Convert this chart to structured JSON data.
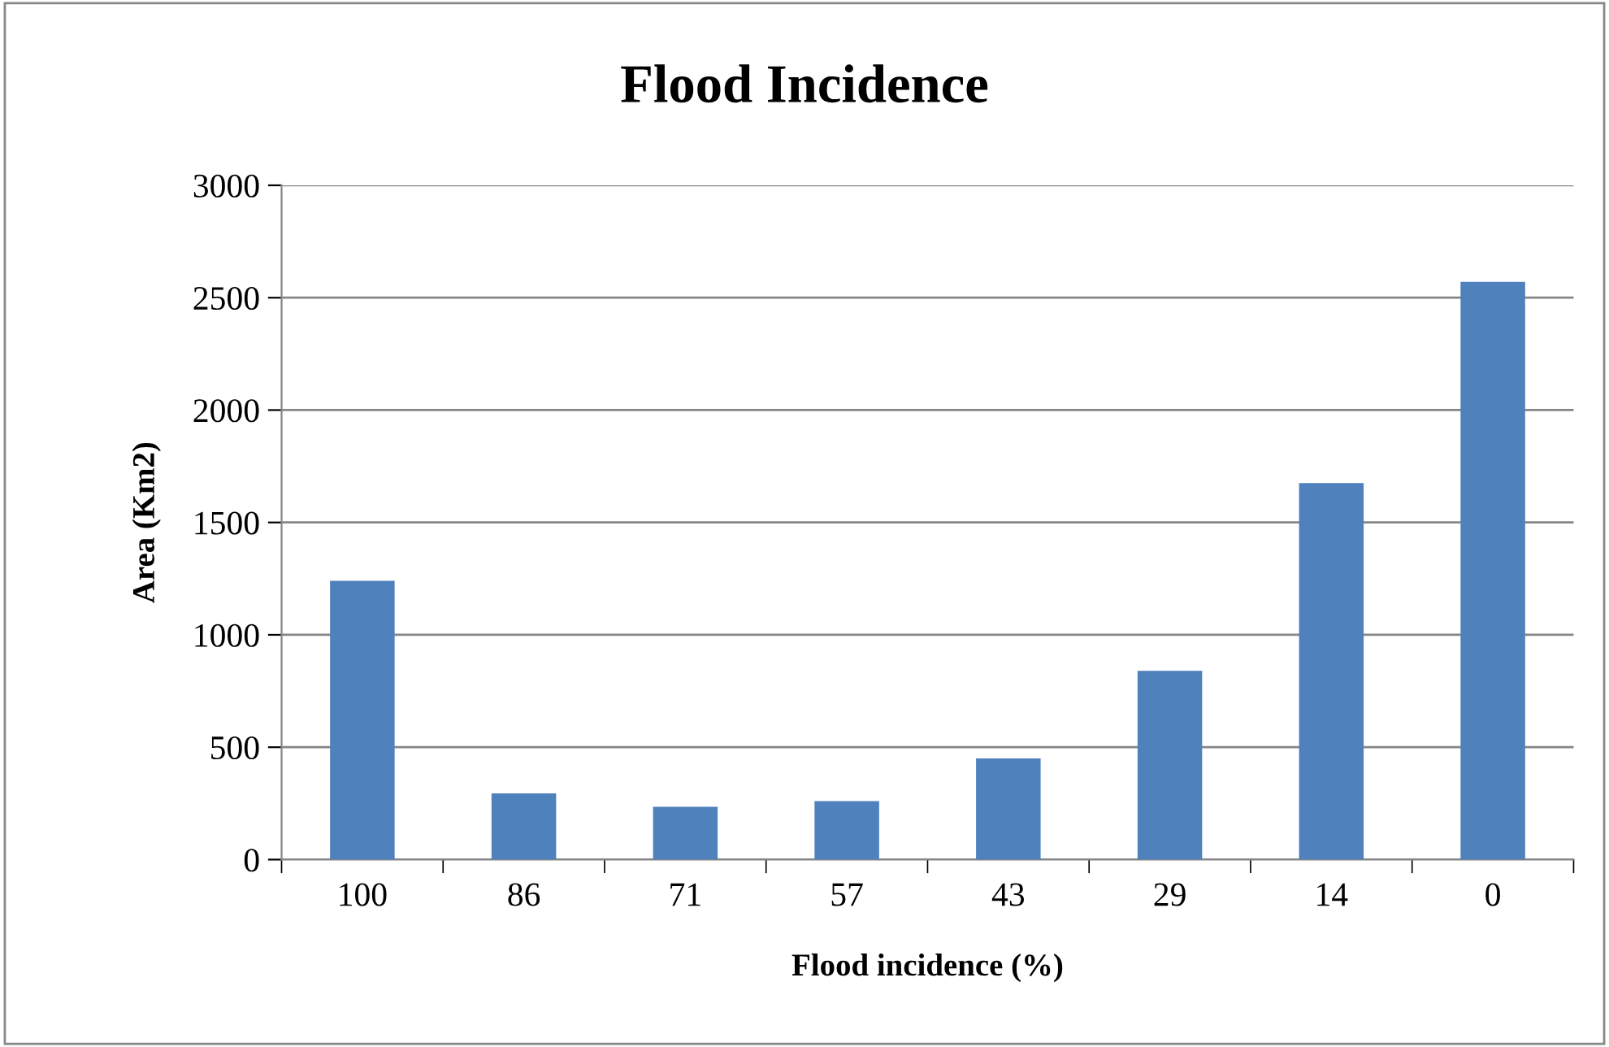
{
  "chart_data": {
    "type": "bar",
    "title": "Flood Incidence",
    "xlabel": "Flood incidence (%)",
    "ylabel": "Area (Km2)",
    "categories": [
      "100",
      "86",
      "71",
      "57",
      "43",
      "29",
      "14",
      "0"
    ],
    "values": [
      1240,
      295,
      235,
      260,
      450,
      840,
      1675,
      2570
    ],
    "color": "#4f81bd",
    "ylim": [
      0,
      3000
    ],
    "yticks": [
      0,
      500,
      1000,
      1500,
      2000,
      2500,
      3000
    ],
    "grid": "y",
    "legend": false
  }
}
